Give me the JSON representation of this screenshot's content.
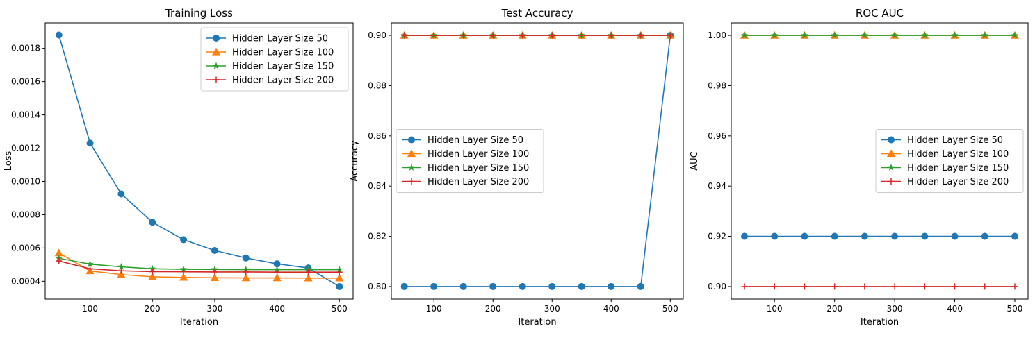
{
  "colors": {
    "Hidden Layer Size 50": "#1f77b4",
    "Hidden Layer Size 100": "#ff7f0e",
    "Hidden Layer Size 150": "#2ca02c",
    "Hidden Layer Size 200": "#d62728"
  },
  "markers": {
    "Hidden Layer Size 50": "circle",
    "Hidden Layer Size 100": "triangle",
    "Hidden Layer Size 150": "star",
    "Hidden Layer Size 200": "plus"
  },
  "chart_data": [
    {
      "type": "line",
      "title": "Training Loss",
      "xlabel": "Iteration",
      "ylabel": "Loss",
      "x": [
        50,
        100,
        150,
        200,
        250,
        300,
        350,
        400,
        450,
        500
      ],
      "xlim": [
        28,
        522
      ],
      "ylim": [
        0.000293,
        0.001953
      ],
      "xticks": [
        100,
        200,
        300,
        400,
        500
      ],
      "yticks": [
        0.0004,
        0.0006,
        0.0008,
        0.001,
        0.0012,
        0.0014,
        0.0016,
        0.0018
      ],
      "ytick_labels": [
        "0.0004",
        "0.0006",
        "0.0008",
        "0.0010",
        "0.0012",
        "0.0014",
        "0.0016",
        "0.0018"
      ],
      "legend_loc": "upper right",
      "series": [
        {
          "name": "Hidden Layer Size 50",
          "values": [
            0.00188,
            0.00123,
            0.000925,
            0.000755,
            0.00065,
            0.000585,
            0.00054,
            0.000505,
            0.00048,
            0.000368
          ]
        },
        {
          "name": "Hidden Layer Size 100",
          "values": [
            0.00057,
            0.000462,
            0.00044,
            0.000427,
            0.000423,
            0.000421,
            0.00042,
            0.00042,
            0.000419,
            0.000419
          ]
        },
        {
          "name": "Hidden Layer Size 150",
          "values": [
            0.000538,
            0.000503,
            0.000487,
            0.000475,
            0.000472,
            0.000471,
            0.00047,
            0.00047,
            0.00047,
            0.00047
          ]
        },
        {
          "name": "Hidden Layer Size 200",
          "values": [
            0.000522,
            0.000475,
            0.000463,
            0.000458,
            0.000457,
            0.000456,
            0.000456,
            0.000455,
            0.000455,
            0.000455
          ]
        }
      ]
    },
    {
      "type": "line",
      "title": "Test Accuracy",
      "xlabel": "Iteration",
      "ylabel": "Accuracy",
      "x": [
        50,
        100,
        150,
        200,
        250,
        300,
        350,
        400,
        450,
        500
      ],
      "xlim": [
        28,
        522
      ],
      "ylim": [
        0.795,
        0.905
      ],
      "xticks": [
        100,
        200,
        300,
        400,
        500
      ],
      "yticks": [
        0.8,
        0.82,
        0.84,
        0.86,
        0.88,
        0.9
      ],
      "ytick_labels": [
        "0.80",
        "0.82",
        "0.84",
        "0.86",
        "0.88",
        "0.90"
      ],
      "legend_loc": "center left",
      "series": [
        {
          "name": "Hidden Layer Size 50",
          "values": [
            0.8,
            0.8,
            0.8,
            0.8,
            0.8,
            0.8,
            0.8,
            0.8,
            0.8,
            0.9
          ]
        },
        {
          "name": "Hidden Layer Size 100",
          "values": [
            0.9,
            0.9,
            0.9,
            0.9,
            0.9,
            0.9,
            0.9,
            0.9,
            0.9,
            0.9
          ]
        },
        {
          "name": "Hidden Layer Size 150",
          "values": [
            0.9,
            0.9,
            0.9,
            0.9,
            0.9,
            0.9,
            0.9,
            0.9,
            0.9,
            0.9
          ]
        },
        {
          "name": "Hidden Layer Size 200",
          "values": [
            0.9,
            0.9,
            0.9,
            0.9,
            0.9,
            0.9,
            0.9,
            0.9,
            0.9,
            0.9
          ]
        }
      ]
    },
    {
      "type": "line",
      "title": "ROC AUC",
      "xlabel": "Iteration",
      "ylabel": "AUC",
      "x": [
        50,
        100,
        150,
        200,
        250,
        300,
        350,
        400,
        450,
        500
      ],
      "xlim": [
        28,
        522
      ],
      "ylim": [
        0.895,
        1.005
      ],
      "xticks": [
        100,
        200,
        300,
        400,
        500
      ],
      "yticks": [
        0.9,
        0.92,
        0.94,
        0.96,
        0.98,
        1.0
      ],
      "ytick_labels": [
        "0.90",
        "0.92",
        "0.94",
        "0.96",
        "0.98",
        "1.00"
      ],
      "legend_loc": "center right",
      "series": [
        {
          "name": "Hidden Layer Size 50",
          "values": [
            0.92,
            0.92,
            0.92,
            0.92,
            0.92,
            0.92,
            0.92,
            0.92,
            0.92,
            0.92
          ]
        },
        {
          "name": "Hidden Layer Size 100",
          "values": [
            1.0,
            1.0,
            1.0,
            1.0,
            1.0,
            1.0,
            1.0,
            1.0,
            1.0,
            1.0
          ]
        },
        {
          "name": "Hidden Layer Size 150",
          "values": [
            1.0,
            1.0,
            1.0,
            1.0,
            1.0,
            1.0,
            1.0,
            1.0,
            1.0,
            1.0
          ]
        },
        {
          "name": "Hidden Layer Size 200",
          "values": [
            0.9,
            0.9,
            0.9,
            0.9,
            0.9,
            0.9,
            0.9,
            0.9,
            0.9,
            0.9
          ]
        }
      ]
    }
  ]
}
